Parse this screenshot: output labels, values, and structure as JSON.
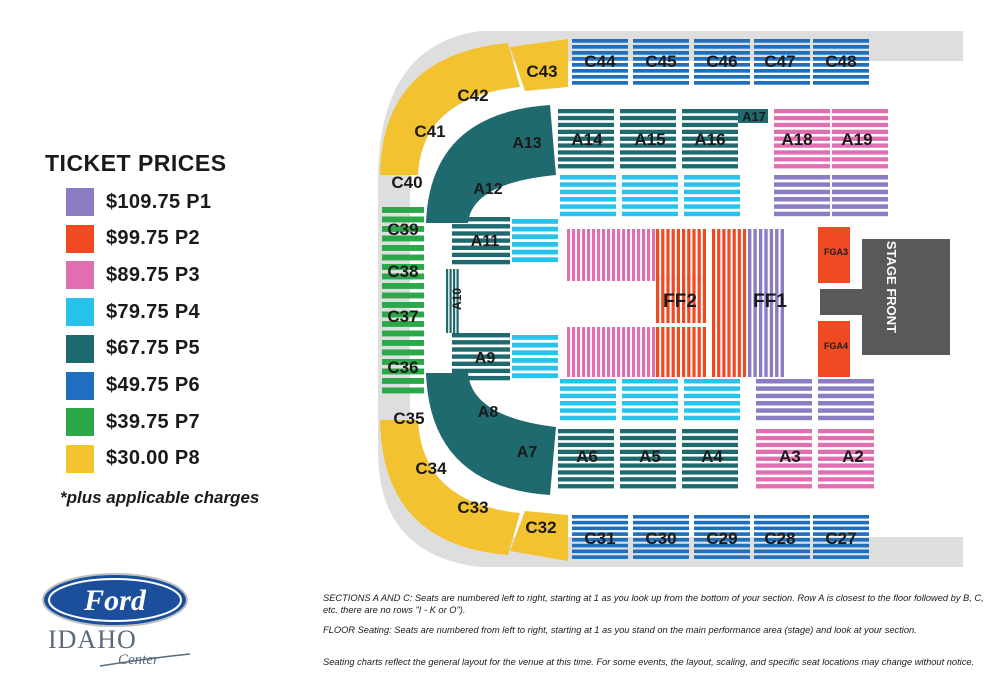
{
  "legend": {
    "title": "TICKET PRICES",
    "items": [
      {
        "label": "$109.75 P1",
        "color": "#8b7cc3"
      },
      {
        "label": "$99.75 P2",
        "color": "#f04a23"
      },
      {
        "label": "$89.75 P3",
        "color": "#e06eb0"
      },
      {
        "label": "$79.75 P4",
        "color": "#28c3ec"
      },
      {
        "label": "$67.75 P5",
        "color": "#1e6a6e"
      },
      {
        "label": "$49.75 P6",
        "color": "#1f6fbf"
      },
      {
        "label": "$39.75 P7",
        "color": "#2aa84a"
      },
      {
        "label": "$30.00 P8",
        "color": "#f2c230"
      }
    ],
    "note": "*plus applicable charges"
  },
  "sections": {
    "c_top": [
      "C44",
      "C45",
      "C46",
      "C47",
      "C48"
    ],
    "c43": "C43",
    "c42": "C42",
    "c41": "C41",
    "c40": "C40",
    "c39": "C39",
    "c38": "C38",
    "c37": "C37",
    "c36": "C36",
    "c35": "C35",
    "c34": "C34",
    "c33": "C33",
    "c32": "C32",
    "c_bottom": [
      "C31",
      "C30",
      "C29",
      "C28",
      "C27"
    ],
    "a_top": [
      "A14",
      "A15",
      "A16"
    ],
    "a17": "A17",
    "a18": "A18",
    "a19": "A19",
    "a13": "A13",
    "a12": "A12",
    "a11": "A11",
    "a10": "A10",
    "a9": "A9",
    "a8": "A8",
    "a7": "A7",
    "a_bottom": [
      "A6",
      "A5",
      "A4",
      "A3",
      "A2"
    ],
    "ff2": "FF2",
    "ff1": "FF1",
    "fga3": "FGA3",
    "fga4": "FGA4",
    "stage": "STAGE FRONT"
  },
  "colors": {
    "p1": "#8b7cc3",
    "p2": "#f04a23",
    "p3": "#e06eb0",
    "p4": "#28c3ec",
    "p5": "#1e6a6e",
    "p6": "#1f6fbf",
    "p7": "#2aa84a",
    "p8": "#f2c230",
    "stage": "#58595b",
    "concourse": "#d9d9d9"
  },
  "notes": [
    "SECTIONS A AND C: Seats are numbered left to right, starting at 1 as you look up from the bottom of your section.  Row A is closest to the floor followed by B, C, etc. there are no rows \"I - K or O\").",
    "FLOOR Seating: Seats are numbered from left to right, starting at 1 as you stand on the main performance area (stage) and look at your section.",
    "Seating charts reflect the general layout for the venue at this time. For some events, the layout, scaling, and specific seat locations may change without notice."
  ],
  "logo": {
    "brand": "Ford",
    "line1": "IDAHO",
    "line2": "Center"
  }
}
